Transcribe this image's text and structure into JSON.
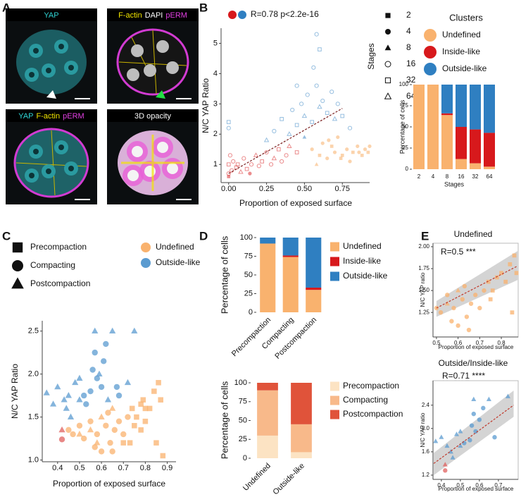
{
  "panel_labels": [
    "A",
    "B",
    "C",
    "D",
    "E"
  ],
  "micrographs": [
    {
      "label": [
        {
          "text": "YAP",
          "color": "#2fd3d3"
        }
      ]
    },
    {
      "label": [
        {
          "text": "F-actin",
          "color": "#f2e600"
        },
        {
          "text": "DAPI",
          "color": "#ffffff"
        },
        {
          "text": "pERM",
          "color": "#e23fe2"
        }
      ]
    },
    {
      "label": [
        {
          "text": "YAP",
          "color": "#2fd3d3"
        },
        {
          "text": "F-actin",
          "color": "#f2e600"
        },
        {
          "text": "pERM",
          "color": "#e23fe2"
        }
      ]
    },
    {
      "label": [
        {
          "text": "3D opacity",
          "color": "#ffffff"
        }
      ]
    }
  ],
  "chart_data": [
    {
      "type": "scatter",
      "title": "R=0.78 p<2.2e-16",
      "x_label": "Proportion of exposed surface",
      "y_label": "N/C YAP Ratio",
      "xlim": [
        -0.05,
        0.93
      ],
      "ylim": [
        0.4,
        5.5
      ],
      "xticks": [
        {
          "value": 0,
          "label": "0.00"
        },
        0.25,
        {
          "value": 0.5,
          "label": "0.50"
        },
        0.75
      ],
      "yticks": [
        1,
        2,
        3,
        4,
        5
      ],
      "opacity": 0.5,
      "series": [
        {
          "color": "#d7191c",
          "x": [
            0.0,
            0.0,
            0.02,
            0.03,
            0.05,
            0.08,
            0.1,
            0.12,
            0.15,
            0.18,
            0.2,
            0.22,
            0.25,
            0.28,
            0.3,
            0.33,
            0.35,
            0.38,
            0.4,
            0.45,
            0.0,
            0.01,
            0.06,
            0.14
          ],
          "values": [
            0.7,
            1.0,
            0.8,
            1.1,
            0.9,
            0.75,
            1.2,
            0.85,
            1.0,
            1.3,
            0.95,
            1.1,
            1.4,
            1.0,
            1.2,
            1.5,
            1.1,
            1.3,
            1.6,
            1.4,
            0.6,
            1.3,
            1.0,
            0.7
          ],
          "shapes": [
            "circle-open",
            "square-open",
            "circle-open",
            "circle-open",
            "square-open",
            "triangle-open",
            "circle-open",
            "square-open",
            "circle-open",
            "triangle-open",
            "circle-open",
            "square-open",
            "circle-open",
            "circle-open",
            "triangle-open",
            "square-open",
            "circle-open",
            "circle-open",
            "triangle-open",
            "square-open",
            "square",
            "circle-open",
            "square-open",
            "circle"
          ]
        },
        {
          "color": "#2f7fc1",
          "x": [
            0.0,
            0.0,
            0.25,
            0.3,
            0.35,
            0.4,
            0.42,
            0.45,
            0.48,
            0.5,
            0.52,
            0.55,
            0.56,
            0.58,
            0.6,
            0.62,
            0.65,
            0.68,
            0.7,
            0.72,
            0.75,
            0.8,
            0.58,
            0.6,
            0.5,
            0.45
          ],
          "values": [
            2.2,
            2.4,
            1.8,
            2.1,
            2.5,
            2.0,
            2.8,
            2.3,
            3.0,
            2.6,
            3.3,
            2.4,
            4.2,
            3.6,
            2.9,
            3.1,
            2.7,
            3.4,
            2.5,
            3.0,
            2.6,
            2.2,
            5.3,
            4.8,
            1.9,
            3.6
          ],
          "shapes": [
            "circle-open",
            "square-open",
            "triangle-open",
            "circle-open",
            "square-open",
            "triangle-open",
            "circle-open",
            "square-open",
            "circle-open",
            "triangle-open",
            "circle-open",
            "square-open",
            "circle-open",
            "circle-open",
            "triangle-open",
            "circle-open",
            "square-open",
            "circle-open",
            "triangle-open",
            "circle-open",
            "square-open",
            "circle-open",
            "circle-open",
            "square-open",
            "triangle",
            "circle-open"
          ]
        },
        {
          "color": "#f7a85a",
          "x": [
            0.55,
            0.6,
            0.62,
            0.65,
            0.68,
            0.7,
            0.72,
            0.75,
            0.78,
            0.8,
            0.82,
            0.85,
            0.88,
            0.9,
            0.92,
            0.93,
            0.58,
            0.66,
            0.74,
            0.86
          ],
          "values": [
            1.5,
            1.3,
            1.7,
            1.2,
            1.6,
            1.4,
            1.9,
            1.3,
            1.5,
            1.1,
            1.4,
            1.6,
            1.3,
            1.5,
            1.4,
            1.6,
            1.0,
            1.8,
            1.2,
            1.4
          ],
          "shapes": [
            "circle",
            "square",
            "circle",
            "circle",
            "square",
            "circle",
            "circle",
            "square",
            "circle",
            "circle",
            "square",
            "circle",
            "square",
            "circle",
            "square",
            "circle",
            "triangle",
            "circle",
            "square",
            "circle"
          ]
        }
      ],
      "trend": {
        "x": [
          0,
          0.75
        ],
        "y": [
          0.7,
          2.85
        ],
        "color": "#7a1f1f"
      },
      "shape_legend": {
        "title": "Stages",
        "items": [
          {
            "label": 2,
            "shape": "square"
          },
          {
            "label": 4,
            "shape": "circle"
          },
          {
            "label": 8,
            "shape": "triangle"
          },
          {
            "label": 16,
            "shape": "circle-open"
          },
          {
            "label": 32,
            "shape": "square-open"
          },
          {
            "label": 64,
            "shape": "triangle-open"
          }
        ]
      }
    },
    {
      "type": "bar",
      "legend_title": "Clusters",
      "x_label": "Stages",
      "y_label": "Percentage of cells",
      "categories": [
        "2",
        "4",
        "8",
        "16",
        "32",
        "64"
      ],
      "ylim": [
        0,
        100
      ],
      "yticks": [
        0,
        25,
        50,
        75,
        100
      ],
      "series": [
        {
          "name": "Undefined",
          "color": "#f9b26e",
          "values": [
            100,
            100,
            64,
            12,
            7,
            3
          ]
        },
        {
          "name": "Inside-like",
          "color": "#d7191c",
          "values": [
            0,
            0,
            2,
            38,
            40,
            40
          ]
        },
        {
          "name": "Outside-like",
          "color": "#2f7fc1",
          "values": [
            0,
            0,
            34,
            50,
            53,
            57
          ]
        }
      ]
    },
    {
      "type": "scatter",
      "x_label": "Proportion of exposed surface",
      "y_label": "N/C YAP Ratio",
      "xlim": [
        0.33,
        0.94
      ],
      "ylim": [
        0.98,
        2.62
      ],
      "xticks": [
        0.4,
        0.5,
        0.6,
        0.7,
        0.8,
        0.9
      ],
      "yticks": [
        {
          "value": 1,
          "label": "1.0"
        },
        1.5,
        {
          "value": 2,
          "label": "2.0"
        },
        2.5
      ],
      "opacity": 0.75,
      "series": [
        {
          "name": "Undefined",
          "color": "#f9b26e",
          "x": [
            0.45,
            0.47,
            0.5,
            0.52,
            0.55,
            0.57,
            0.58,
            0.6,
            0.62,
            0.63,
            0.64,
            0.65,
            0.66,
            0.68,
            0.7,
            0.72,
            0.74,
            0.75,
            0.76,
            0.78,
            0.79,
            0.8,
            0.82,
            0.84,
            0.86,
            0.87,
            0.85,
            0.88,
            0.7,
            0.73,
            0.5,
            0.55,
            0.6,
            0.65,
            0.58,
            0.8,
            0.78
          ],
          "values": [
            1.35,
            1.3,
            1.4,
            1.25,
            1.45,
            1.15,
            1.3,
            1.1,
            1.4,
            1.55,
            1.2,
            1.1,
            1.35,
            1.45,
            1.3,
            1.5,
            1.6,
            1.4,
            1.5,
            1.65,
            1.7,
            1.45,
            1.6,
            1.8,
            1.9,
            1.7,
            1.2,
            1.05,
            1.2,
            1.2,
            1.3,
            1.35,
            1.5,
            1.6,
            1.2,
            1.6,
            1.35
          ],
          "shapes": [
            "circle",
            "circle",
            "circle",
            "circle",
            "circle",
            "circle",
            "circle",
            "circle",
            "circle",
            "circle",
            "circle",
            "circle",
            "circle",
            "circle",
            "circle",
            "circle",
            "square",
            "square",
            "square",
            "square",
            "square",
            "square",
            "square",
            "square",
            "square",
            "square",
            "square",
            "square",
            "square",
            "square",
            "triangle",
            "triangle",
            "triangle",
            "triangle",
            "triangle",
            "square",
            "square"
          ]
        },
        {
          "name": "Outside-like",
          "color": "#5b9bd0",
          "x": [
            0.35,
            0.38,
            0.4,
            0.43,
            0.44,
            0.45,
            0.46,
            0.48,
            0.5,
            0.52,
            0.53,
            0.55,
            0.56,
            0.57,
            0.58,
            0.59,
            0.6,
            0.61,
            0.62,
            0.63,
            0.57,
            0.65,
            0.67,
            0.68,
            0.72,
            0.75,
            0.5
          ],
          "values": [
            1.78,
            1.65,
            1.85,
            1.7,
            1.6,
            1.75,
            1.5,
            1.9,
            1.7,
            1.75,
            1.65,
            1.8,
            2.05,
            2.25,
            1.95,
            2.0,
            1.85,
            2.15,
            2.35,
            1.7,
            2.5,
            2.5,
            1.85,
            1.75,
            1.9,
            2.5,
            1.95
          ],
          "shapes": [
            "triangle",
            "triangle",
            "triangle",
            "triangle",
            "triangle",
            "triangle",
            "triangle",
            "triangle",
            "triangle",
            "circle",
            "circle",
            "circle",
            "circle",
            "circle",
            "circle",
            "triangle",
            "circle",
            "circle",
            "circle",
            "triangle",
            "triangle",
            "triangle",
            "circle",
            "circle",
            "triangle",
            "triangle",
            "triangle"
          ]
        },
        {
          "color": "#e0605e",
          "x": [
            0.42,
            0.42
          ],
          "values": [
            1.35,
            1.24
          ],
          "shapes": [
            "triangle",
            "circle"
          ]
        }
      ],
      "shape_legend": {
        "items": [
          {
            "label": "Precompaction",
            "shape": "square"
          },
          {
            "label": "Compacting",
            "shape": "circle"
          },
          {
            "label": "Postcompaction",
            "shape": "triangle"
          }
        ]
      }
    },
    {
      "type": "bar",
      "y_label": "Percentage of cells",
      "categories": [
        "Precompaction",
        "Compacting",
        "Postcompaction"
      ],
      "ylim": [
        0,
        100
      ],
      "yticks": [
        0,
        25,
        50,
        75,
        100
      ],
      "series": [
        {
          "name": "Undefined",
          "color": "#f9b26e",
          "values": [
            92,
            74,
            30
          ]
        },
        {
          "name": "Inside-like",
          "color": "#d7191c",
          "values": [
            0,
            2,
            3
          ]
        },
        {
          "name": "Outside-like",
          "color": "#2f7fc1",
          "values": [
            8,
            24,
            67
          ]
        }
      ]
    },
    {
      "type": "bar",
      "y_label": "Percentage of cells",
      "categories": [
        "Undefined",
        "Outside-like"
      ],
      "ylim": [
        0,
        100
      ],
      "yticks": [
        0,
        25,
        50,
        75,
        100
      ],
      "series": [
        {
          "name": "Precompaction",
          "color": "#fce3c3",
          "values": [
            30,
            8
          ]
        },
        {
          "name": "Compacting",
          "color": "#f8b98a",
          "values": [
            60,
            37
          ]
        },
        {
          "name": "Postcompaction",
          "color": "#e0533a",
          "values": [
            10,
            55
          ]
        }
      ]
    },
    {
      "type": "scatter",
      "title": "Undefined",
      "annotation": "R=0.5 ***",
      "x_label": "Proportion of exposed surface",
      "y_label": "N/C YAP ratio",
      "xlim": [
        0.484,
        0.878
      ],
      "ylim": [
        0.97,
        2.04
      ],
      "xticks": [
        0.5,
        0.6,
        0.7,
        0.8
      ],
      "yticks": [
        1.25,
        {
          "value": 1.5,
          "label": "1.50"
        },
        1.75,
        {
          "value": 2,
          "label": "2.00"
        }
      ],
      "opacity": 0.75,
      "series": [
        {
          "color": "#f9b26e",
          "x": [
            0.5,
            0.52,
            0.55,
            0.57,
            0.58,
            0.6,
            0.62,
            0.63,
            0.64,
            0.65,
            0.66,
            0.68,
            0.7,
            0.72,
            0.74,
            0.75,
            0.76,
            0.78,
            0.8,
            0.82,
            0.84,
            0.86,
            0.87,
            0.85,
            0.55,
            0.6
          ],
          "values": [
            1.3,
            1.25,
            1.45,
            1.15,
            1.3,
            1.1,
            1.4,
            1.55,
            1.2,
            1.05,
            1.35,
            1.45,
            1.3,
            1.5,
            1.6,
            1.4,
            1.5,
            1.65,
            1.7,
            1.6,
            1.8,
            1.9,
            1.7,
            1.25,
            1.35,
            1.5
          ],
          "shapes": [
            "circle",
            "circle",
            "circle",
            "circle",
            "circle",
            "circle",
            "circle",
            "circle",
            "circle",
            "circle",
            "circle",
            "circle",
            "circle",
            "circle",
            "square",
            "square",
            "square",
            "square",
            "square",
            "square",
            "square",
            "square",
            "square",
            "square",
            "triangle",
            "triangle"
          ]
        }
      ],
      "trend": {
        "x": [
          0.5,
          0.875
        ],
        "y": [
          1.3,
          1.78
        ],
        "lower": [
          1.2,
          1.62
        ],
        "upper": [
          1.38,
          1.95
        ],
        "color": "#c0392b",
        "band_color": "#a0a0a0"
      }
    },
    {
      "type": "scatter",
      "title": "Outside/Inside-like",
      "annotation": "R=0.71 ****",
      "x_label": "Proportion of exposed surface",
      "y_label": "N/C YAP ratio",
      "xlim": [
        0.356,
        0.804
      ],
      "ylim": [
        1.127,
        2.82
      ],
      "xticks": [
        0.4,
        0.5,
        0.6,
        0.7
      ],
      "yticks": [
        1.2,
        1.6,
        {
          "value": 2,
          "label": "2.0"
        },
        2.4
      ],
      "opacity": 0.75,
      "series": [
        {
          "color": "#5b9bd0",
          "x": [
            0.37,
            0.4,
            0.43,
            0.45,
            0.46,
            0.48,
            0.5,
            0.52,
            0.55,
            0.56,
            0.57,
            0.58,
            0.6,
            0.62,
            0.65,
            0.57,
            0.68,
            0.75,
            0.5
          ],
          "values": [
            1.78,
            1.85,
            1.7,
            1.6,
            1.5,
            1.9,
            1.7,
            1.75,
            1.8,
            2.05,
            2.25,
            1.95,
            2.15,
            2.35,
            2.5,
            2.5,
            1.85,
            2.55,
            1.95
          ],
          "shapes": [
            "triangle",
            "triangle",
            "triangle",
            "triangle",
            "triangle",
            "triangle",
            "triangle",
            "circle",
            "circle",
            "circle",
            "circle",
            "circle",
            "circle",
            "circle",
            "triangle",
            "triangle",
            "circle",
            "triangle",
            "triangle"
          ]
        },
        {
          "color": "#e0605e",
          "x": [
            0.42,
            0.42
          ],
          "values": [
            1.38,
            1.28
          ],
          "shapes": [
            "triangle",
            "circle"
          ]
        }
      ],
      "trend": {
        "x": [
          0.36,
          0.78
        ],
        "y": [
          1.4,
          2.4
        ],
        "lower": [
          1.2,
          2.2
        ],
        "upper": [
          1.58,
          2.65
        ],
        "color": "#c0392b",
        "band_color": "#a0a0a0"
      }
    }
  ]
}
